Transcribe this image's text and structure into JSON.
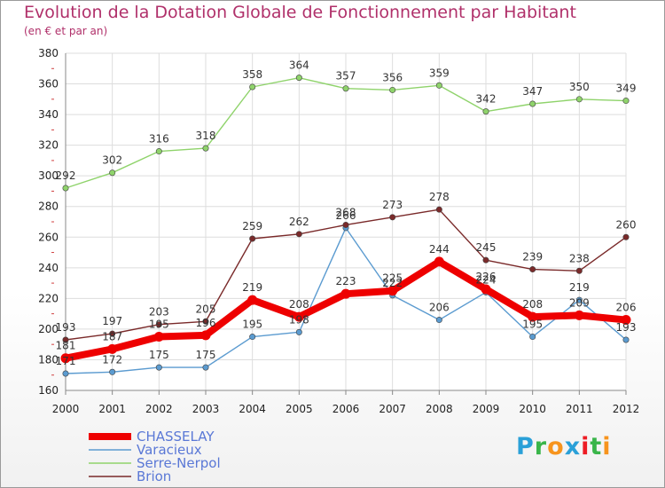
{
  "header": {
    "title": "Evolution de la Dotation Globale de Fonctionnement par Habitant",
    "subtitle": "(en € et par an)"
  },
  "logo": {
    "letters": [
      "P",
      "r",
      "o",
      "x",
      "i",
      "t",
      "i"
    ],
    "colors": [
      "#2aa0d8",
      "#39b54a",
      "#f7941d",
      "#2aa0d8",
      "#ed1c24",
      "#39b54a",
      "#f7941d"
    ]
  },
  "chart_data": {
    "type": "line",
    "title": "Evolution de la Dotation Globale de Fonctionnement par Habitant",
    "subtitle": "(en € et par an)",
    "x": [
      "2000",
      "2001",
      "2002",
      "2003",
      "2004",
      "2005",
      "2006",
      "2007",
      "2008",
      "2009",
      "2010",
      "2011",
      "2012"
    ],
    "ylim": [
      160,
      380
    ],
    "yticks": [
      160,
      180,
      200,
      220,
      240,
      260,
      280,
      300,
      320,
      340,
      360,
      380
    ],
    "grid": true,
    "legend": "bottom-left",
    "series": [
      {
        "name": "CHASSELAY",
        "color": "#ee0000",
        "values": [
          181,
          187,
          195,
          196,
          219,
          208,
          223,
          225,
          244,
          226,
          208,
          209,
          206
        ],
        "labels": [
          "181",
          "187",
          "195",
          "196",
          "219",
          "208",
          "223",
          "225",
          "244",
          "226",
          "208",
          "209",
          "206"
        ]
      },
      {
        "name": "Varacieux",
        "color": "#5b9bd0",
        "values": [
          171,
          172,
          175,
          175,
          195,
          198,
          266,
          222,
          206,
          224,
          195,
          219,
          193
        ],
        "labels": [
          "171",
          "172",
          "175",
          "175",
          "195",
          "198",
          "266",
          "222",
          "206",
          "224",
          "195",
          "219",
          "193"
        ]
      },
      {
        "name": "Serre-Nerpol",
        "color": "#8fd36b",
        "values": [
          292,
          302,
          316,
          318,
          358,
          364,
          357,
          356,
          359,
          342,
          347,
          350,
          349
        ],
        "labels": [
          "292",
          "302",
          "316",
          "318",
          "358",
          "364",
          "357",
          "356",
          "359",
          "342",
          "347",
          "350",
          "349"
        ]
      },
      {
        "name": "Brion",
        "color": "#7a2a2a",
        "values": [
          193,
          197,
          203,
          205,
          259,
          262,
          268,
          273,
          278,
          245,
          239,
          238,
          260
        ],
        "labels": [
          "193",
          "197",
          "203",
          "205",
          "259",
          "262",
          "268",
          "273",
          "278",
          "245",
          "239",
          "238",
          "260"
        ]
      }
    ]
  }
}
